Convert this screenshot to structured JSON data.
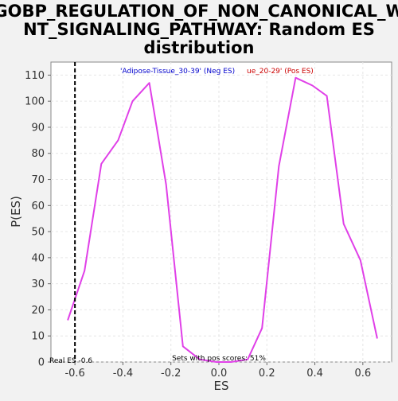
{
  "chart_data": {
    "type": "line",
    "title_lines": [
      "GOBP_REGULATION_OF_NON_CANONICAL_W",
      "NT_SIGNALING_PATHWAY: Random ES",
      "distribution"
    ],
    "xlabel": "ES",
    "ylabel": "P(ES)",
    "xlim": [
      -0.7,
      0.72
    ],
    "ylim": [
      0,
      115
    ],
    "x_ticks": [
      -0.6,
      -0.4,
      -0.2,
      0.0,
      0.2,
      0.4,
      0.6
    ],
    "x_tick_labels": [
      "-0.6",
      "-0.4",
      "-0.2",
      "0.0",
      "0.2",
      "0.4",
      "0.6"
    ],
    "y_ticks": [
      0,
      10,
      20,
      30,
      40,
      50,
      60,
      70,
      80,
      90,
      100,
      110
    ],
    "y_tick_labels": [
      "0",
      "10",
      "20",
      "30",
      "40",
      "50",
      "60",
      "70",
      "80",
      "90",
      "100",
      "110"
    ],
    "grid": true,
    "series": [
      {
        "color": "#e040e8",
        "x": [
          -0.63,
          -0.56,
          -0.49,
          -0.42,
          -0.36,
          -0.29,
          -0.22,
          -0.15,
          -0.08,
          -0.01,
          0.05,
          0.12,
          0.18,
          0.25,
          0.32,
          0.39,
          0.45,
          0.52,
          0.59,
          0.66
        ],
        "y": [
          16,
          35,
          76,
          85,
          100,
          107,
          68,
          6,
          1,
          0,
          0,
          1,
          13,
          75,
          109,
          106,
          102,
          53,
          39,
          9
        ]
      }
    ],
    "real_es": -0.6,
    "legend": {
      "neg_text": "'Adipose-Tissue_30-39' (Neg ES)",
      "pos_text": "ue_20-29' (Pos ES)",
      "neg_color": "#0000cc",
      "pos_color": "#cc0000"
    },
    "annotations": {
      "real_es_text": "Real ES -0.6",
      "pos_scores_text": "Sets with pos scores: 51%"
    }
  }
}
